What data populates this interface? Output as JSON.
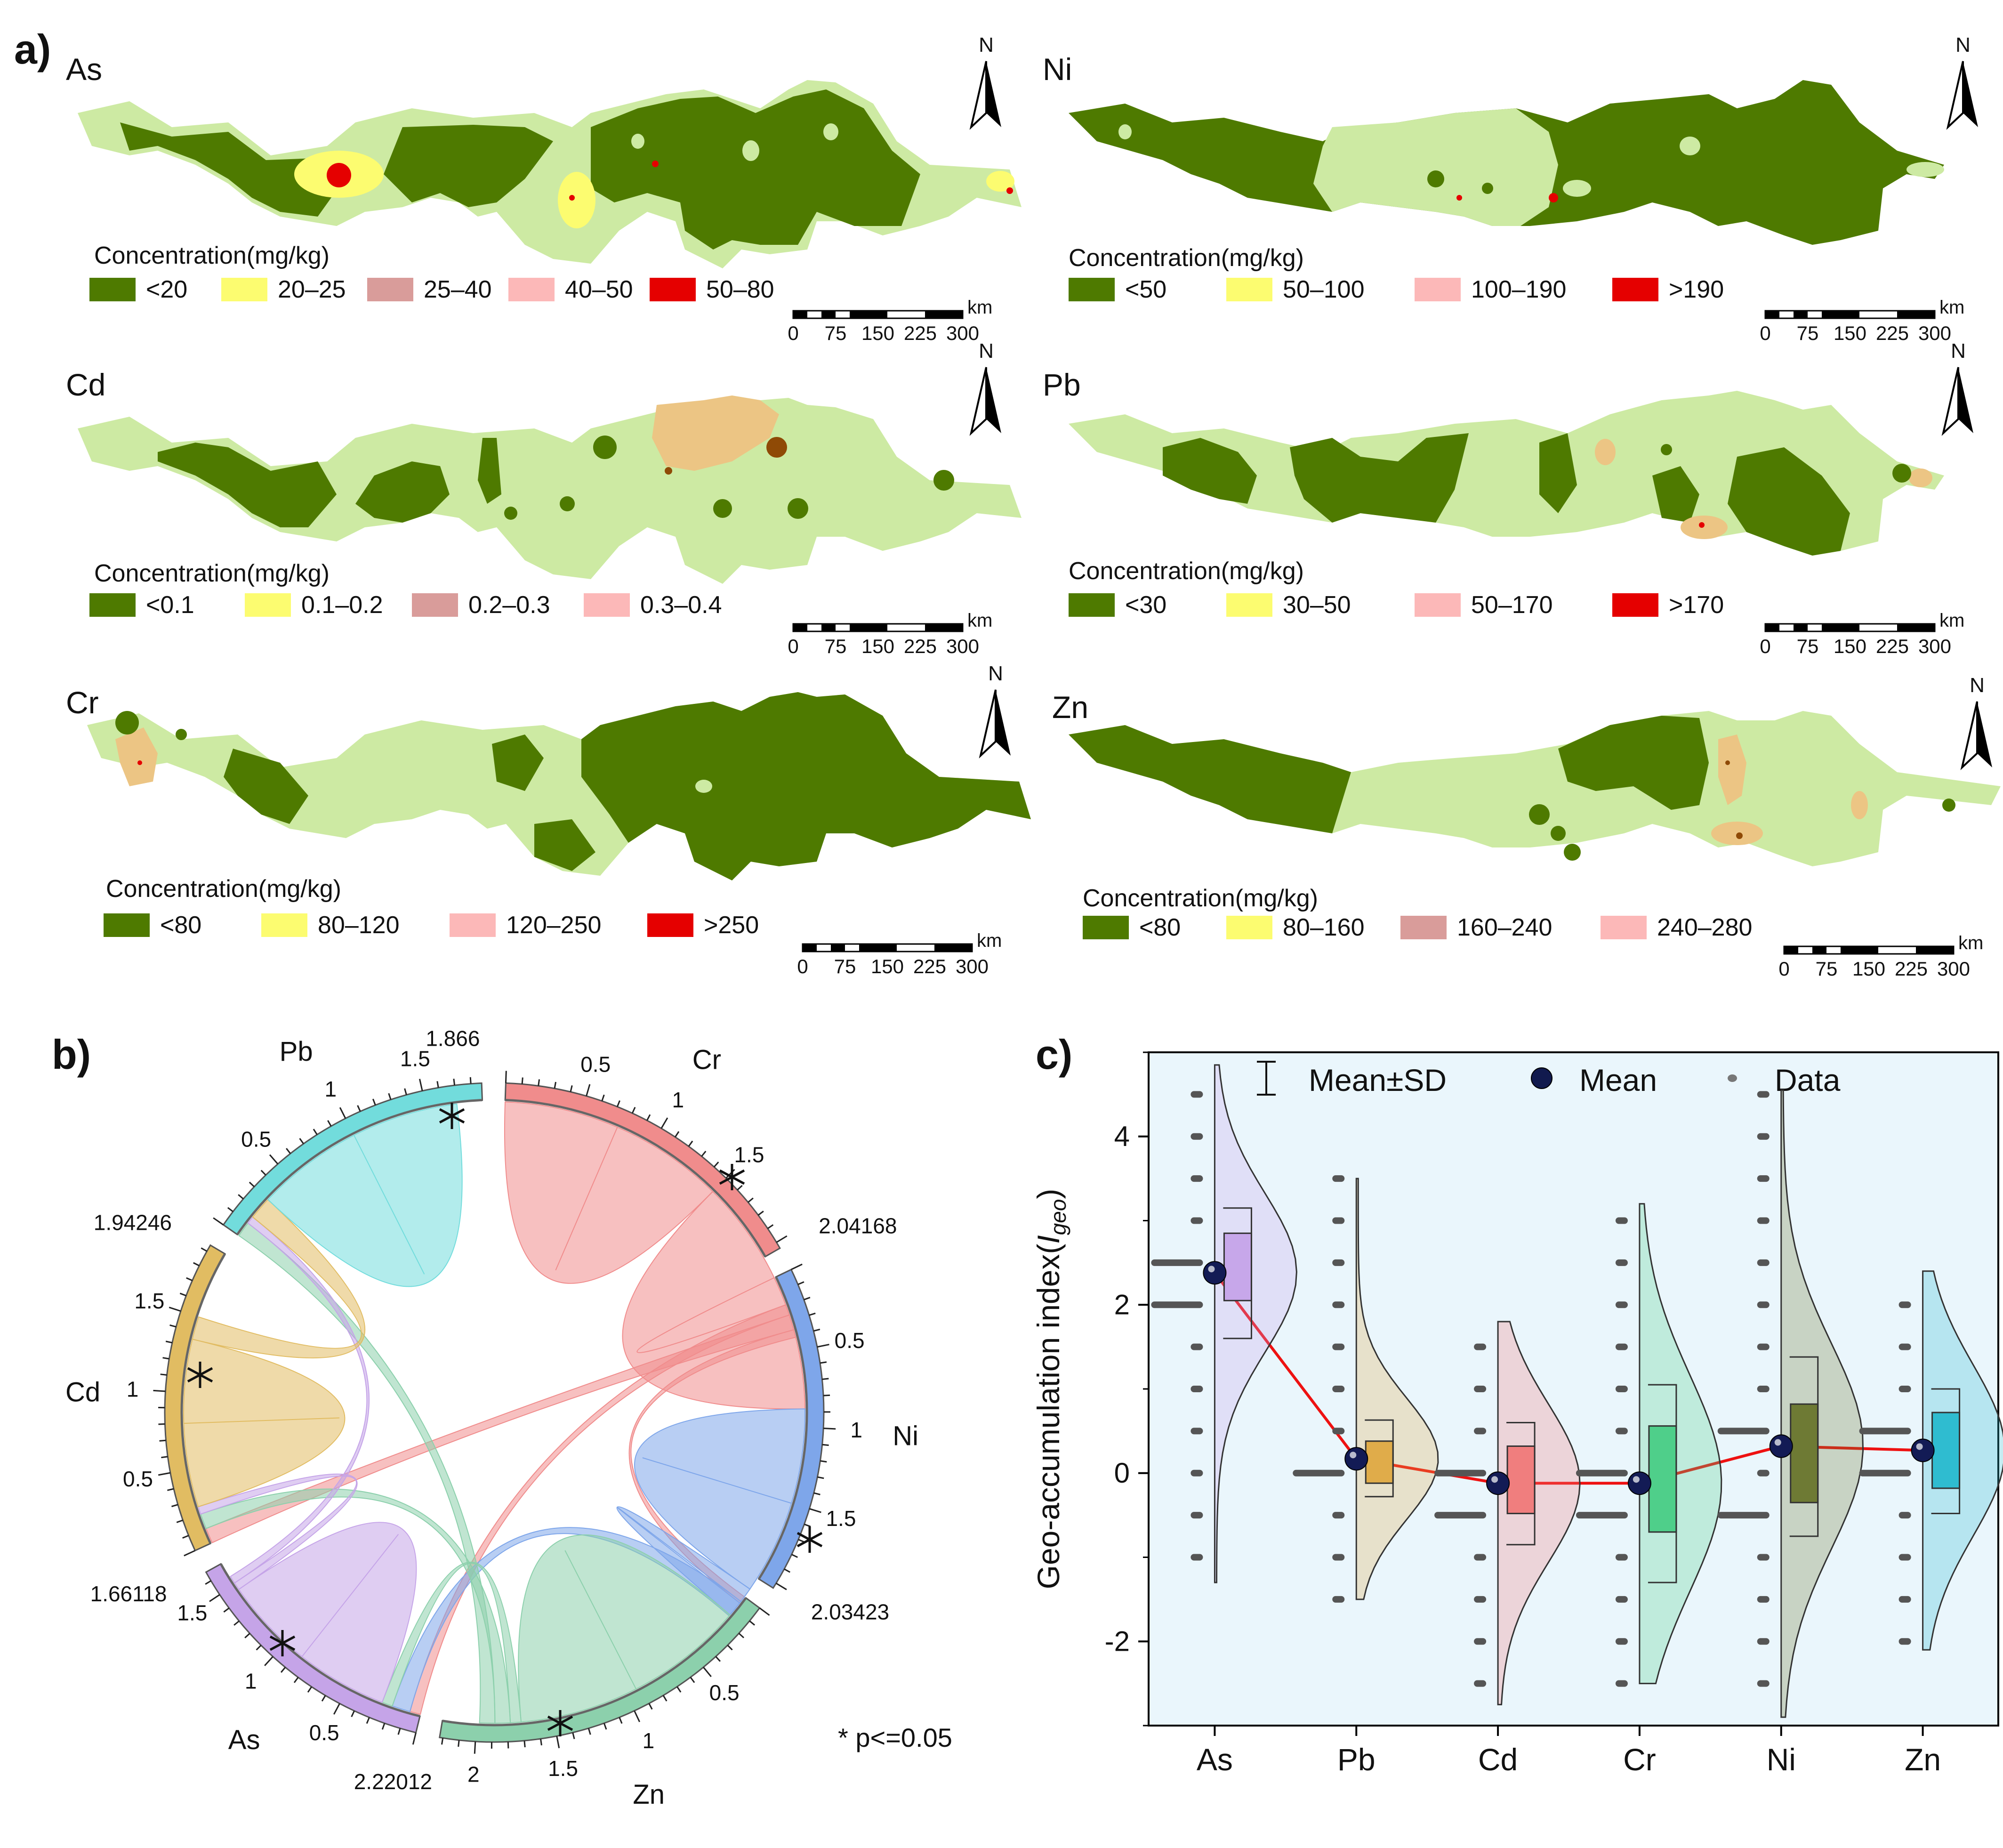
{
  "chart_data": [
    {
      "type": "map",
      "panel_label": "a)",
      "colors": {
        "dark": "#4e7a00",
        "light": "#cdeaa3",
        "yellow": "#fcfc70",
        "mauve": "#d99c9a",
        "pink": "#fcb8b8",
        "red": "#e50000",
        "orange": "#ecc584",
        "brown": "#8f4a06"
      },
      "maps": [
        {
          "id": "as",
          "title": "As",
          "concentration_label": "Concentration(mg/kg)",
          "legend": [
            {
              "label": "<20",
              "color": "#4e7a00"
            },
            {
              "label": "20–25",
              "color": "#fcfc70"
            },
            {
              "label": "25–40",
              "color": "#d99c9a"
            },
            {
              "label": "40–50",
              "color": "#fcb8b8"
            },
            {
              "label": "50–80",
              "color": "#e50000"
            }
          ]
        },
        {
          "id": "ni",
          "title": "Ni",
          "concentration_label": "Concentration(mg/kg)",
          "legend": [
            {
              "label": "<50",
              "color": "#4e7a00"
            },
            {
              "label": "50–100",
              "color": "#fcfc70"
            },
            {
              "label": "100–190",
              "color": "#fcb8b8"
            },
            {
              "label": ">190",
              "color": "#e50000"
            }
          ]
        },
        {
          "id": "cd",
          "title": "Cd",
          "concentration_label": "Concentration(mg/kg)",
          "legend": [
            {
              "label": "<0.1",
              "color": "#4e7a00"
            },
            {
              "label": "0.1–0.2",
              "color": "#fcfc70"
            },
            {
              "label": "0.2–0.3",
              "color": "#d99c9a"
            },
            {
              "label": "0.3–0.4",
              "color": "#fcb8b8"
            }
          ]
        },
        {
          "id": "pb",
          "title": "Pb",
          "concentration_label": "Concentration(mg/kg)",
          "legend": [
            {
              "label": "<30",
              "color": "#4e7a00"
            },
            {
              "label": "30–50",
              "color": "#fcfc70"
            },
            {
              "label": "50–170",
              "color": "#fcb8b8"
            },
            {
              "label": ">170",
              "color": "#e50000"
            }
          ]
        },
        {
          "id": "cr",
          "title": "Cr",
          "concentration_label": "Concentration(mg/kg)",
          "legend": [
            {
              "label": "<80",
              "color": "#4e7a00"
            },
            {
              "label": "80–120",
              "color": "#fcfc70"
            },
            {
              "label": "120–250",
              "color": "#fcb8b8"
            },
            {
              "label": ">250",
              "color": "#e50000"
            }
          ]
        },
        {
          "id": "zn",
          "title": "Zn",
          "concentration_label": "Concentration(mg/kg)",
          "legend": [
            {
              "label": "<80",
              "color": "#4e7a00"
            },
            {
              "label": "80–160",
              "color": "#fcfc70"
            },
            {
              "label": "160–240",
              "color": "#d99c9a"
            },
            {
              "label": "240–280",
              "color": "#fcb8b8"
            }
          ]
        }
      ],
      "north_label": "N",
      "scale_bar": {
        "unit": "km",
        "ticks": [
          "0",
          "75",
          "150",
          "225",
          "300"
        ]
      }
    },
    {
      "type": "chord",
      "panel_label": "b)",
      "sectors": [
        {
          "name": "Cr",
          "total": 2.04168,
          "color": "#f08c8c",
          "tick_labels": [
            "0.5",
            "1",
            "1.5"
          ]
        },
        {
          "name": "Ni",
          "total": 2.03423,
          "color": "#7ea6ea",
          "tick_labels": [
            "0.5",
            "1",
            "1.5"
          ]
        },
        {
          "name": "Zn",
          "total": 2.22012,
          "color": "#8cd0ac",
          "tick_labels": [
            "0.5",
            "1",
            "1.5",
            "2"
          ]
        },
        {
          "name": "As",
          "total": 1.66118,
          "color": "#c5a4e8",
          "tick_labels": [
            "0.5",
            "1",
            "1.5"
          ]
        },
        {
          "name": "Cd",
          "total": 1.94246,
          "color": "#e1bc62",
          "tick_labels": [
            "0.5",
            "1",
            "1.5"
          ]
        },
        {
          "name": "Pb",
          "total": 1.866,
          "color": "#72dcdc",
          "tick_labels": [
            "0.5",
            "1",
            "1.5"
          ]
        }
      ],
      "total_labels": [
        "2.04168",
        "2.03423",
        "2.22012",
        "1.66118",
        "1.94246",
        "1.866"
      ],
      "links": [
        {
          "from": "Cr",
          "to": "Cr",
          "value": 0.75
        },
        {
          "from": "Cr",
          "to": "Ni",
          "value": 0.88
        },
        {
          "from": "Cr",
          "to": "As",
          "value": 0.07
        },
        {
          "from": "Cr",
          "to": "Cd",
          "value": 0.1
        },
        {
          "from": "Cr",
          "to": "Zn",
          "value": 0.05
        },
        {
          "from": "Ni",
          "to": "Ni",
          "value": 0.62
        },
        {
          "from": "Ni",
          "to": "Zn",
          "value": 0.1
        },
        {
          "from": "Ni",
          "to": "As",
          "value": 0.12
        },
        {
          "from": "Zn",
          "to": "Zn",
          "value": 0.78
        },
        {
          "from": "Zn",
          "to": "As",
          "value": 0.07
        },
        {
          "from": "Zn",
          "to": "Cd",
          "value": 0.1
        },
        {
          "from": "Zn",
          "to": "Pb",
          "value": 0.1
        },
        {
          "from": "As",
          "to": "As",
          "value": 0.6
        },
        {
          "from": "As",
          "to": "Cd",
          "value": 0.05
        },
        {
          "from": "As",
          "to": "Pb",
          "value": 0.05
        },
        {
          "from": "Cd",
          "to": "Cd",
          "value": 0.55
        },
        {
          "from": "Cd",
          "to": "Pb",
          "value": 0.15
        },
        {
          "from": "Pb",
          "to": "Pb",
          "value": 0.7
        }
      ],
      "significant": [
        "Cr-Ni",
        "Cr-As",
        "Zn-Pb",
        "Cd-Zn",
        "Pb-Cd",
        "Ni-As"
      ],
      "significance_note": "* p<=0.05"
    },
    {
      "type": "violin",
      "panel_label": "c)",
      "ylabel_main": "Geo-accumulation index(",
      "ylabel_italic": "I",
      "ylabel_sub": "geo",
      "ylabel_close": ")",
      "ylim": [
        -3,
        5
      ],
      "yticks": [
        "-2",
        "0",
        "2",
        "4"
      ],
      "legend": [
        "Mean±SD",
        "Mean",
        "Data"
      ],
      "background": "#eaf6fc",
      "categories": [
        "As",
        "Pb",
        "Cd",
        "Cr",
        "Ni",
        "Zn"
      ],
      "series": [
        {
          "name": "As",
          "color": "#c7a7ea",
          "mean": 2.38,
          "q1": 2.05,
          "q3": 2.85,
          "sd_low": 1.6,
          "sd_high": 3.15,
          "min": -1.3,
          "max": 4.85
        },
        {
          "name": "Pb",
          "color": "#e0ac4a",
          "mean": 0.17,
          "q1": -0.12,
          "q3": 0.38,
          "sd_low": -0.28,
          "sd_high": 0.63,
          "min": -1.5,
          "max": 3.5
        },
        {
          "name": "Cd",
          "color": "#f07e7e",
          "mean": -0.12,
          "q1": -0.48,
          "q3": 0.32,
          "sd_low": -0.85,
          "sd_high": 0.6,
          "min": -2.75,
          "max": 1.8
        },
        {
          "name": "Cr",
          "color": "#4fcf8a",
          "mean": -0.12,
          "q1": -0.7,
          "q3": 0.56,
          "sd_low": -1.3,
          "sd_high": 1.05,
          "min": -2.5,
          "max": 3.2
        },
        {
          "name": "Ni",
          "color": "#6e7a34",
          "mean": 0.32,
          "q1": -0.35,
          "q3": 0.82,
          "sd_low": -0.75,
          "sd_high": 1.38,
          "min": -2.9,
          "max": 4.55
        },
        {
          "name": "Zn",
          "color": "#2fbcd0",
          "mean": 0.27,
          "q1": -0.18,
          "q3": 0.72,
          "sd_low": -0.48,
          "sd_high": 1.0,
          "min": -2.1,
          "max": 2.4
        }
      ]
    }
  ]
}
